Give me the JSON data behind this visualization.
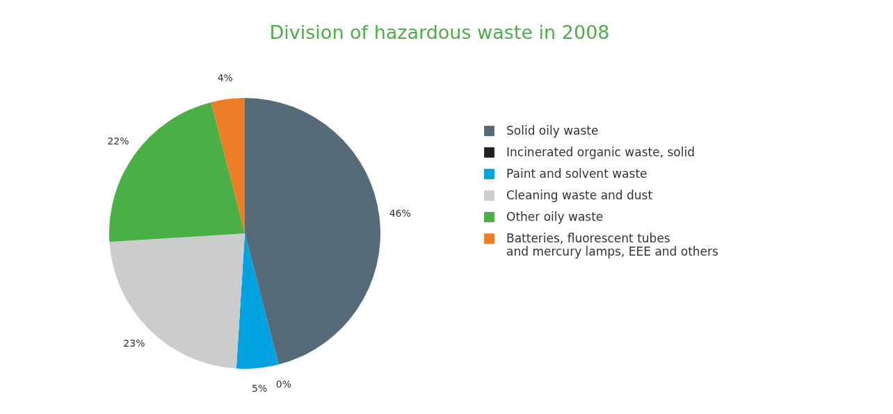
{
  "chart_data": {
    "type": "pie",
    "title": "Division of hazardous waste in 2008",
    "categories": [
      "Solid oily waste",
      "Incinerated organic waste, solid",
      "Paint and solvent waste",
      "Cleaning waste and dust",
      "Other oily waste",
      "Batteries, fluorescent tubes and mercury lamps, EEE and others"
    ],
    "values": [
      46,
      0,
      5,
      23,
      22,
      4
    ],
    "colors": [
      "#566b7a",
      "#231f20",
      "#00a3dd",
      "#cbcccc",
      "#4ab045",
      "#ed7d27"
    ],
    "value_labels": [
      "46%",
      "0%",
      "5%",
      "23%",
      "22%",
      "4%"
    ],
    "legend": "right"
  }
}
